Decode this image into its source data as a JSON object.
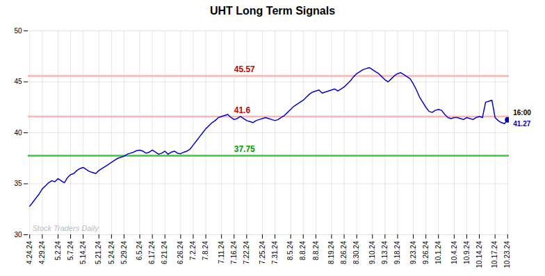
{
  "chart_data": {
    "type": "line",
    "title": "UHT Long Term Signals",
    "categories": [
      "4.24.24",
      null,
      null,
      null,
      "4.29.24",
      null,
      null,
      null,
      null,
      "5.2.24",
      null,
      null,
      null,
      "5.7.24",
      null,
      null,
      null,
      "5.14.24",
      null,
      null,
      null,
      null,
      "5.21.24",
      null,
      null,
      null,
      "5.24.24",
      null,
      null,
      null,
      "5.29.24",
      null,
      null,
      null,
      null,
      "6.5.24",
      null,
      null,
      null,
      "6.17.24",
      null,
      null,
      null,
      "6.21.24",
      null,
      null,
      null,
      null,
      "6.26.24",
      null,
      null,
      null,
      "7.2.24",
      null,
      null,
      null,
      "7.8.24",
      null,
      null,
      null,
      null,
      "7.11.24",
      null,
      null,
      null,
      "7.16.24",
      null,
      null,
      null,
      "7.22.24",
      null,
      null,
      null,
      null,
      "7.25.24",
      null,
      null,
      null,
      "7.31.24",
      null,
      null,
      null,
      null,
      "8.5.24",
      null,
      null,
      null,
      "8.8.24",
      null,
      null,
      null,
      "8.8.24",
      null,
      null,
      null,
      null,
      "8.19.24",
      null,
      null,
      null,
      "8.26.24",
      null,
      null,
      null,
      "8.30.24",
      null,
      null,
      null,
      null,
      "9.10.24",
      null,
      null,
      null,
      "9.13.24",
      null,
      null,
      null,
      "9.18.24",
      null,
      null,
      null,
      null,
      "9.23.24",
      null,
      null,
      null,
      "9.26.24",
      null,
      null,
      null,
      "10.1.24",
      null,
      null,
      null,
      null,
      "10.4.24",
      null,
      null,
      null,
      "10.9.24",
      null,
      null,
      null,
      "10.14.24",
      null,
      null,
      null,
      null,
      "10.17.24",
      null,
      null,
      null,
      "10.23.24"
    ],
    "values": [
      32.8,
      33.2,
      33.6,
      34.0,
      34.5,
      34.8,
      35.1,
      35.3,
      35.2,
      35.5,
      35.3,
      35.1,
      35.6,
      35.9,
      36.0,
      36.3,
      36.5,
      36.6,
      36.4,
      36.2,
      36.1,
      36.0,
      36.3,
      36.5,
      36.7,
      36.9,
      37.1,
      37.3,
      37.5,
      37.6,
      37.7,
      37.9,
      38.0,
      38.1,
      38.25,
      38.3,
      38.2,
      38.0,
      38.1,
      38.3,
      38.1,
      37.9,
      38.0,
      38.2,
      37.9,
      38.1,
      38.2,
      38.0,
      37.95,
      38.1,
      38.2,
      38.4,
      38.8,
      39.2,
      39.6,
      40.0,
      40.4,
      40.7,
      41.0,
      41.2,
      41.5,
      41.6,
      41.7,
      41.8,
      41.5,
      41.3,
      41.4,
      41.6,
      41.4,
      41.2,
      41.1,
      41.0,
      41.2,
      41.3,
      41.4,
      41.5,
      41.4,
      41.3,
      41.2,
      41.3,
      41.5,
      41.7,
      42.0,
      42.3,
      42.6,
      42.8,
      43.0,
      43.2,
      43.5,
      43.8,
      44.0,
      44.1,
      44.2,
      43.9,
      44.0,
      44.1,
      44.2,
      44.3,
      44.1,
      44.3,
      44.5,
      44.8,
      45.1,
      45.5,
      45.8,
      46.0,
      46.2,
      46.3,
      46.4,
      46.2,
      46.0,
      45.8,
      45.5,
      45.2,
      45.0,
      45.3,
      45.6,
      45.8,
      45.9,
      45.7,
      45.5,
      45.3,
      44.8,
      44.2,
      43.5,
      43.0,
      42.5,
      42.1,
      42.0,
      42.2,
      42.3,
      42.2,
      41.8,
      41.5,
      41.4,
      41.5,
      41.5,
      41.4,
      41.3,
      41.5,
      41.4,
      41.3,
      41.5,
      41.6,
      41.5,
      43.0,
      43.1,
      43.2,
      41.5,
      41.2,
      41.0,
      40.9,
      41.27
    ],
    "color": "#0000dd",
    "ylim": [
      30,
      50
    ],
    "yticks": [
      30,
      35,
      40,
      45,
      50
    ],
    "grid": true,
    "hlines": [
      {
        "value": 45.57,
        "color": "#ffb3b3",
        "label": "45.57",
        "label_color": "#cc0000"
      },
      {
        "value": 41.6,
        "color": "#ffb3b3",
        "label": "41.6",
        "label_color": "#cc0000"
      },
      {
        "value": 37.75,
        "color": "#33cc33",
        "label": "37.75",
        "label_color": "#009900"
      }
    ],
    "endpoint": {
      "marker": "dot",
      "color": "#0000cc",
      "label": "16:00",
      "data_label": true
    },
    "annotations": [
      {
        "text": "Stock Traders Daily",
        "color": "#bbbbbb"
      }
    ]
  }
}
